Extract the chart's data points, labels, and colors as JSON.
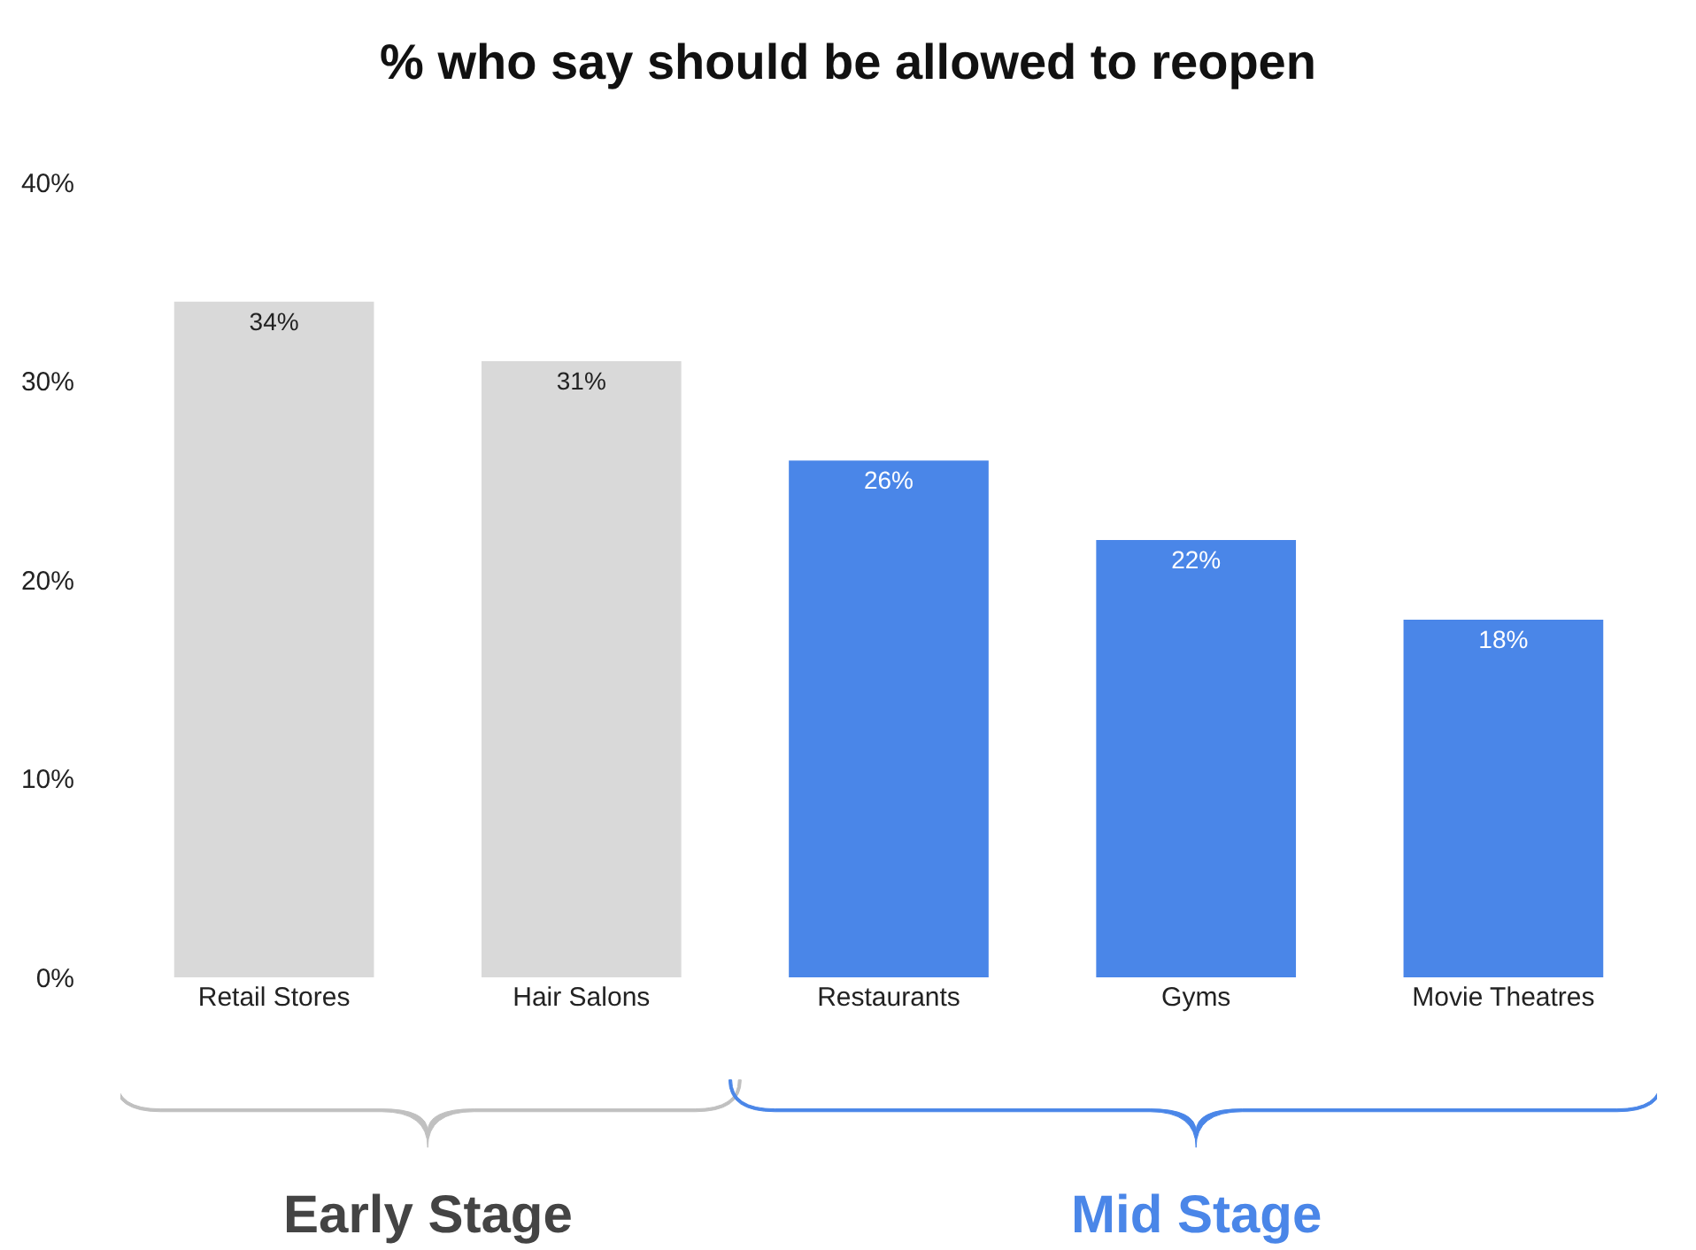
{
  "chart_data": {
    "type": "bar",
    "title": "% who say should be allowed to reopen",
    "categories": [
      "Retail Stores",
      "Hair Salons",
      "Restaurants",
      "Gyms",
      "Movie Theatres"
    ],
    "values": [
      34,
      31,
      26,
      22,
      18
    ],
    "colors": [
      "#d9d9d9",
      "#d9d9d9",
      "#4a86e8",
      "#4a86e8",
      "#4a86e8"
    ],
    "value_labels": [
      "34%",
      "31%",
      "26%",
      "22%",
      "18%"
    ],
    "ylim": [
      0,
      40
    ],
    "yticks": [
      {
        "value": 0,
        "label": "0%"
      },
      {
        "value": 10,
        "label": "10%"
      },
      {
        "value": 20,
        "label": "20%"
      },
      {
        "value": 30,
        "label": "30%"
      },
      {
        "value": 40,
        "label": "40%"
      }
    ],
    "grid": false,
    "annotations": [
      "Early Stage",
      "Mid Stage"
    ]
  }
}
